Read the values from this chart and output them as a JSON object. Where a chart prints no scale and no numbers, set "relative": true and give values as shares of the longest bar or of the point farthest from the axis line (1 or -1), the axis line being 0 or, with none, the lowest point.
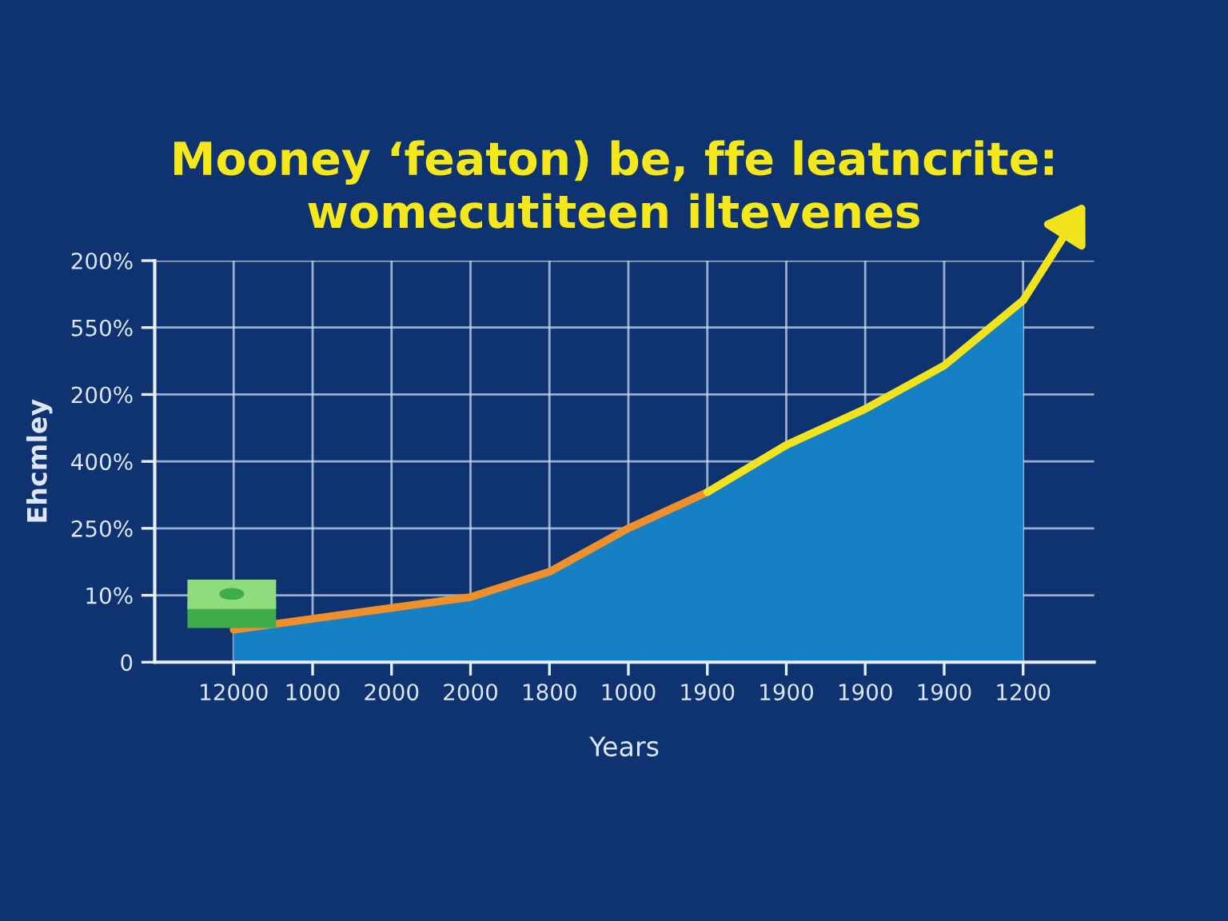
{
  "chart_data": {
    "type": "area",
    "title": "Mooney ‘featon) be, ffe leatncrite:\nwomecutiteen iltevenes",
    "xlabel": "Years",
    "ylabel": "Ehcmley",
    "relative": true,
    "categories": [
      "12000",
      "1000",
      "2000",
      "2000",
      "1800",
      "1000",
      "1900",
      "1900",
      "1900",
      "1900",
      "1200"
    ],
    "y_categories": [
      "200%",
      "550%",
      "200%",
      "400%",
      "250%",
      "10%",
      "0"
    ],
    "series": [
      {
        "color": "#1580c4",
        "values": [
          0.08,
          0.11,
          0.14,
          0.17,
          0.24,
          0.36,
          0.46,
          0.59,
          0.69,
          0.81,
          0.99
        ]
      },
      {
        "type": "line",
        "color": "#f0902a",
        "values": [
          0.09,
          0.12,
          0.15,
          0.18,
          0.25,
          0.37,
          0.47,
          null,
          null,
          null,
          null
        ]
      },
      {
        "type": "line",
        "color": "#f2e41c",
        "values": [
          null,
          null,
          null,
          null,
          null,
          null,
          0.47,
          0.6,
          0.7,
          0.82,
          1
        ]
      }
    ],
    "grid": true
  }
}
